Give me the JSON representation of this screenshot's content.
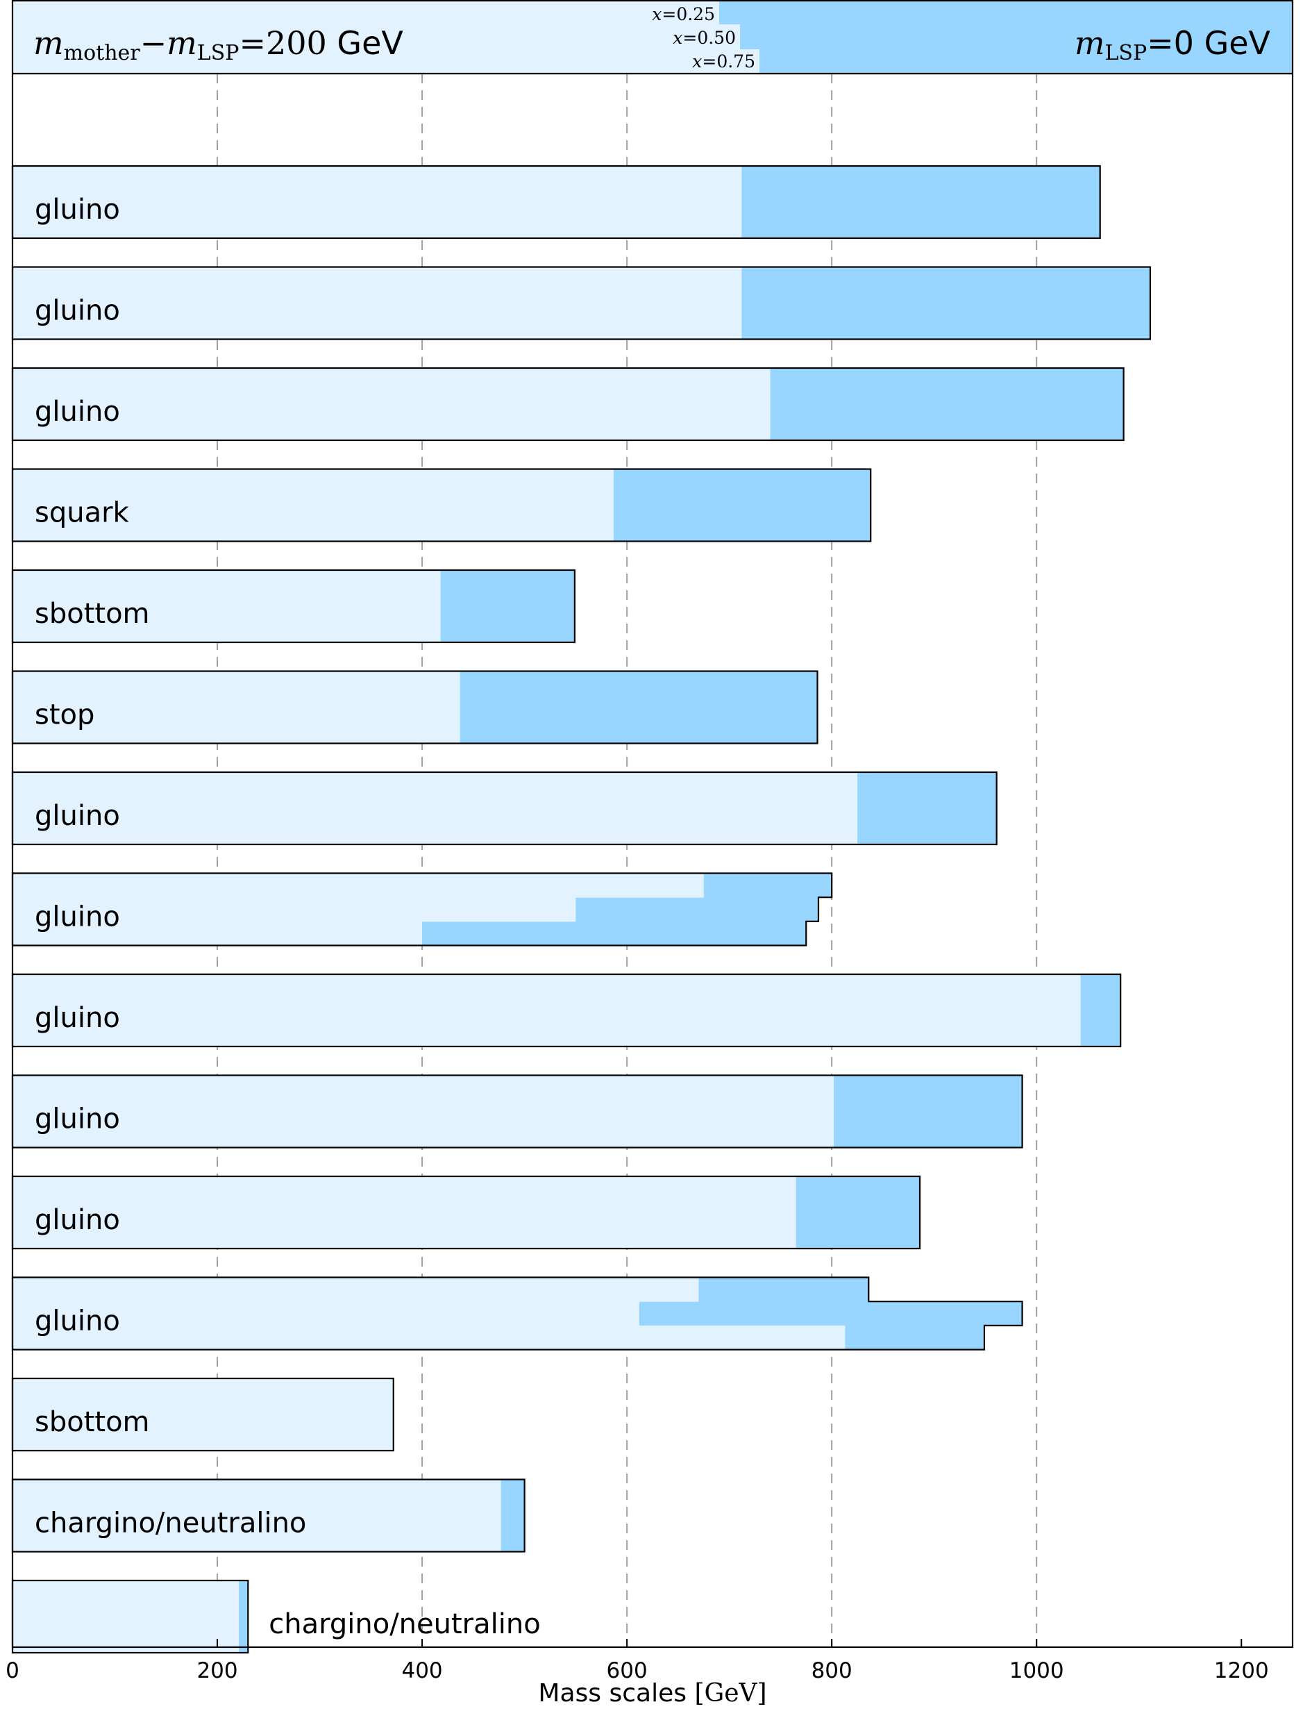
{
  "chart_data": {
    "type": "bar",
    "xlabel": "Mass scales",
    "xlabel_unit": "[GeV]",
    "xlim": [
      0,
      1250
    ],
    "xticks": [
      0,
      200,
      400,
      600,
      800,
      1000,
      1200
    ],
    "grid": "vertical dashed at 200, 400, 600, 800, 1000",
    "header": {
      "left_label": "m_mother − m_LSP = 200 GeV",
      "left_label_parts": {
        "m1": "m",
        "sub1": "mother",
        "minus": "−",
        "m2": "m",
        "sub2": "LSP",
        "eq": "=200",
        "unit": " GeV"
      },
      "right_label_parts": {
        "m": "m",
        "sub": "LSP",
        "rest": "=0 GeV"
      },
      "x_legend": [
        "x = 0.25",
        "x = 0.50",
        "x = 0.75"
      ],
      "x_legend_parts": [
        {
          "x": "x",
          "val": "=0.25"
        },
        {
          "x": "x",
          "val": "=0.50"
        },
        {
          "x": "x",
          "val": "=0.75"
        }
      ],
      "colors": {
        "dm200": "#e3f2ff",
        "mlsp0": "#99d6ff"
      }
    },
    "rows": [
      {
        "label": "",
        "dm200": 0,
        "mlsp0": 0
      },
      {
        "label": "gluino",
        "dm200": 712,
        "mlsp0": 1062
      },
      {
        "label": "gluino",
        "dm200": 712,
        "mlsp0": 1111
      },
      {
        "label": "gluino",
        "dm200": 740,
        "mlsp0": 1085
      },
      {
        "label": "squark",
        "dm200": 587,
        "mlsp0": 838
      },
      {
        "label": "sbottom",
        "dm200": 418,
        "mlsp0": 549
      },
      {
        "label": "stop",
        "dm200": 437,
        "mlsp0": 786
      },
      {
        "label": "gluino",
        "dm200": 825,
        "mlsp0": 961
      },
      {
        "label": "gluino",
        "multi": true,
        "dm200": [
          675,
          550,
          400
        ],
        "mlsp0": [
          800,
          787,
          775
        ]
      },
      {
        "label": "gluino",
        "dm200": 1043,
        "mlsp0": 1082
      },
      {
        "label": "gluino",
        "dm200": 802,
        "mlsp0": 986
      },
      {
        "label": "gluino",
        "dm200": 765,
        "mlsp0": 886
      },
      {
        "label": "gluino",
        "multi": true,
        "dm200": [
          670,
          612,
          813
        ],
        "mlsp0": [
          836,
          986,
          949
        ]
      },
      {
        "label": "sbottom",
        "dm200": 372,
        "mlsp0": 372
      },
      {
        "label": "chargino/neutralino",
        "dm200": 477,
        "mlsp0": 500
      },
      {
        "label": "chargino/neutralino",
        "dm200": 221,
        "mlsp0": 230,
        "label_outside": true
      }
    ]
  }
}
